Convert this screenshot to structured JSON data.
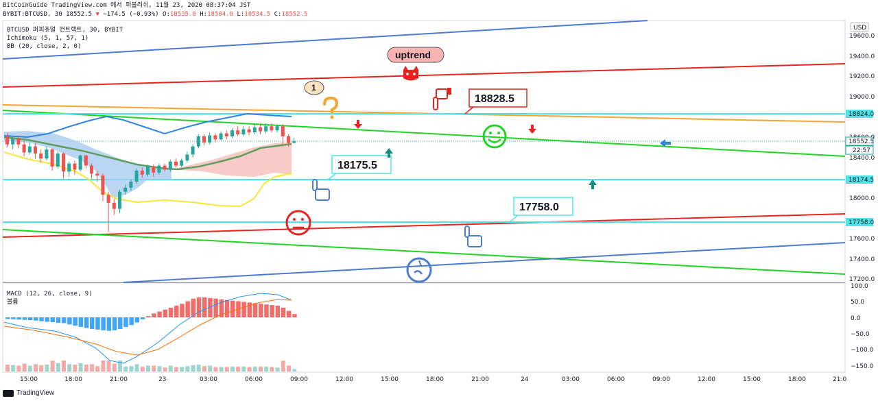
{
  "header": {
    "line1": "BitCoinGuide TradingView.com 에서 퍼블리쉬, 11월 23, 2020 08:37:04 JST",
    "symbol": "BYBIT:BTCUSD, 30",
    "last": "18552.5",
    "arrow": "▼",
    "change": "−174.5 (−0.93%)",
    "o_label": "O:",
    "o_val": "18535.0",
    "h_label": "H:",
    "h_val": "18584.0",
    "l_label": "L:",
    "l_val": "18534.5",
    "c_label": "C:",
    "c_val": "18552.5"
  },
  "legend": {
    "title": "BTCUSD 퍼피츄얼 컨트랙트, 30, BYBIT",
    "ichimoku": "Ichimoku (5, 1, 57, 1)",
    "bb": "BB (20, close, 2, 0)",
    "macd": "MACD (12, 26, close, 9)",
    "volume": "볼륨"
  },
  "axis": {
    "currency": "USD",
    "price_ticks": [
      "19600.0",
      "19400.0",
      "19200.0",
      "19000.0",
      "18600.0",
      "18400.0",
      "18000.0",
      "17600.0",
      "17400.0",
      "17200.0"
    ],
    "badges": {
      "b18824": "18824.0",
      "b18552": "18552.5",
      "countdown": "22:57",
      "b18174": "18174.5",
      "b17758": "17758.0"
    },
    "macd_ticks": [
      "100.0",
      "50.0",
      "0.0",
      "−50.0",
      "−100.0",
      "−150.0"
    ],
    "time_labels": [
      "15:00",
      "18:00",
      "21:00",
      "23",
      "03:00",
      "06:00",
      "09:00",
      "12:00",
      "15:00",
      "18:00",
      "21:00",
      "24",
      "03:00",
      "06:00",
      "09:00",
      "12:00",
      "15:00",
      "18:00",
      "21:0"
    ]
  },
  "annotations": {
    "uptrend": "uptrend",
    "one": "1",
    "label_18828": "18828.5",
    "label_18175": "18175.5",
    "label_17758": "17758.0"
  },
  "footer": {
    "brand": "TradingView"
  },
  "chart_data": {
    "type": "candlestick",
    "symbol": "BTCUSD",
    "interval": "30",
    "ylim": [
      17150,
      19750
    ],
    "horizontal_levels": [
      18824.0,
      18174.5,
      17758.0
    ],
    "candles": [
      {
        "o": 18600,
        "c": 18520,
        "h": 18630,
        "l": 18490
      },
      {
        "o": 18520,
        "c": 18580,
        "h": 18600,
        "l": 18470
      },
      {
        "o": 18580,
        "c": 18520,
        "h": 18600,
        "l": 18480
      },
      {
        "o": 18520,
        "c": 18440,
        "h": 18560,
        "l": 18400
      },
      {
        "o": 18440,
        "c": 18500,
        "h": 18540,
        "l": 18420
      },
      {
        "o": 18500,
        "c": 18430,
        "h": 18530,
        "l": 18380
      },
      {
        "o": 18430,
        "c": 18380,
        "h": 18470,
        "l": 18340
      },
      {
        "o": 18380,
        "c": 18470,
        "h": 18500,
        "l": 18360
      },
      {
        "o": 18470,
        "c": 18300,
        "h": 18480,
        "l": 18260
      },
      {
        "o": 18300,
        "c": 18430,
        "h": 18450,
        "l": 18280
      },
      {
        "o": 18430,
        "c": 18250,
        "h": 18440,
        "l": 18180
      },
      {
        "o": 18250,
        "c": 18330,
        "h": 18350,
        "l": 18200
      },
      {
        "o": 18330,
        "c": 18270,
        "h": 18360,
        "l": 18220
      },
      {
        "o": 18270,
        "c": 18410,
        "h": 18420,
        "l": 18250
      },
      {
        "o": 18410,
        "c": 18310,
        "h": 18420,
        "l": 18280
      },
      {
        "o": 18310,
        "c": 18230,
        "h": 18330,
        "l": 18180
      },
      {
        "o": 18230,
        "c": 18210,
        "h": 18260,
        "l": 18150
      },
      {
        "o": 18210,
        "c": 18020,
        "h": 18230,
        "l": 17960
      },
      {
        "o": 18020,
        "c": 17940,
        "h": 18050,
        "l": 17650
      },
      {
        "o": 17940,
        "c": 17880,
        "h": 17980,
        "l": 17820
      },
      {
        "o": 17880,
        "c": 18050,
        "h": 18070,
        "l": 17840
      },
      {
        "o": 18050,
        "c": 18090,
        "h": 18120,
        "l": 18020
      },
      {
        "o": 18090,
        "c": 18150,
        "h": 18170,
        "l": 18060
      },
      {
        "o": 18150,
        "c": 18260,
        "h": 18280,
        "l": 18130
      },
      {
        "o": 18260,
        "c": 18220,
        "h": 18290,
        "l": 18190
      },
      {
        "o": 18220,
        "c": 18300,
        "h": 18320,
        "l": 18200
      },
      {
        "o": 18300,
        "c": 18240,
        "h": 18320,
        "l": 18200
      },
      {
        "o": 18240,
        "c": 18310,
        "h": 18330,
        "l": 18220
      },
      {
        "o": 18310,
        "c": 18270,
        "h": 18330,
        "l": 18250
      },
      {
        "o": 18270,
        "c": 18350,
        "h": 18370,
        "l": 18250
      },
      {
        "o": 18350,
        "c": 18310,
        "h": 18380,
        "l": 18290
      },
      {
        "o": 18310,
        "c": 18360,
        "h": 18380,
        "l": 18290
      },
      {
        "o": 18360,
        "c": 18420,
        "h": 18450,
        "l": 18340
      },
      {
        "o": 18420,
        "c": 18500,
        "h": 18520,
        "l": 18390
      },
      {
        "o": 18500,
        "c": 18600,
        "h": 18620,
        "l": 18480
      },
      {
        "o": 18600,
        "c": 18540,
        "h": 18620,
        "l": 18510
      },
      {
        "o": 18540,
        "c": 18610,
        "h": 18640,
        "l": 18520
      },
      {
        "o": 18610,
        "c": 18570,
        "h": 18630,
        "l": 18540
      },
      {
        "o": 18570,
        "c": 18630,
        "h": 18650,
        "l": 18560
      },
      {
        "o": 18630,
        "c": 18600,
        "h": 18660,
        "l": 18570
      },
      {
        "o": 18600,
        "c": 18660,
        "h": 18680,
        "l": 18580
      },
      {
        "o": 18660,
        "c": 18620,
        "h": 18700,
        "l": 18600
      },
      {
        "o": 18620,
        "c": 18670,
        "h": 18700,
        "l": 18600
      },
      {
        "o": 18670,
        "c": 18640,
        "h": 18700,
        "l": 18610
      },
      {
        "o": 18640,
        "c": 18690,
        "h": 18720,
        "l": 18620
      },
      {
        "o": 18690,
        "c": 18650,
        "h": 18720,
        "l": 18620
      },
      {
        "o": 18650,
        "c": 18700,
        "h": 18730,
        "l": 18630
      },
      {
        "o": 18700,
        "c": 18660,
        "h": 18730,
        "l": 18640
      },
      {
        "o": 18660,
        "c": 18700,
        "h": 18720,
        "l": 18640
      },
      {
        "o": 18700,
        "c": 18600,
        "h": 18720,
        "l": 18500
      },
      {
        "o": 18600,
        "c": 18535,
        "h": 18620,
        "l": 18500
      },
      {
        "o": 18535,
        "c": 18552.5,
        "h": 18584,
        "l": 18534.5
      }
    ],
    "macd_hist": [
      -5,
      -6,
      -7,
      -8,
      -9,
      -10,
      -12,
      -14,
      -15,
      -17,
      -18,
      -22,
      -26,
      -30,
      -33,
      -36,
      -38,
      -40,
      -42,
      -40,
      -36,
      -30,
      -24,
      -16,
      -6,
      4,
      12,
      18,
      24,
      30,
      36,
      42,
      50,
      58,
      62,
      62,
      60,
      58,
      56,
      54,
      52,
      50,
      48,
      46,
      44,
      42,
      40,
      38,
      36,
      30,
      20,
      10
    ]
  }
}
